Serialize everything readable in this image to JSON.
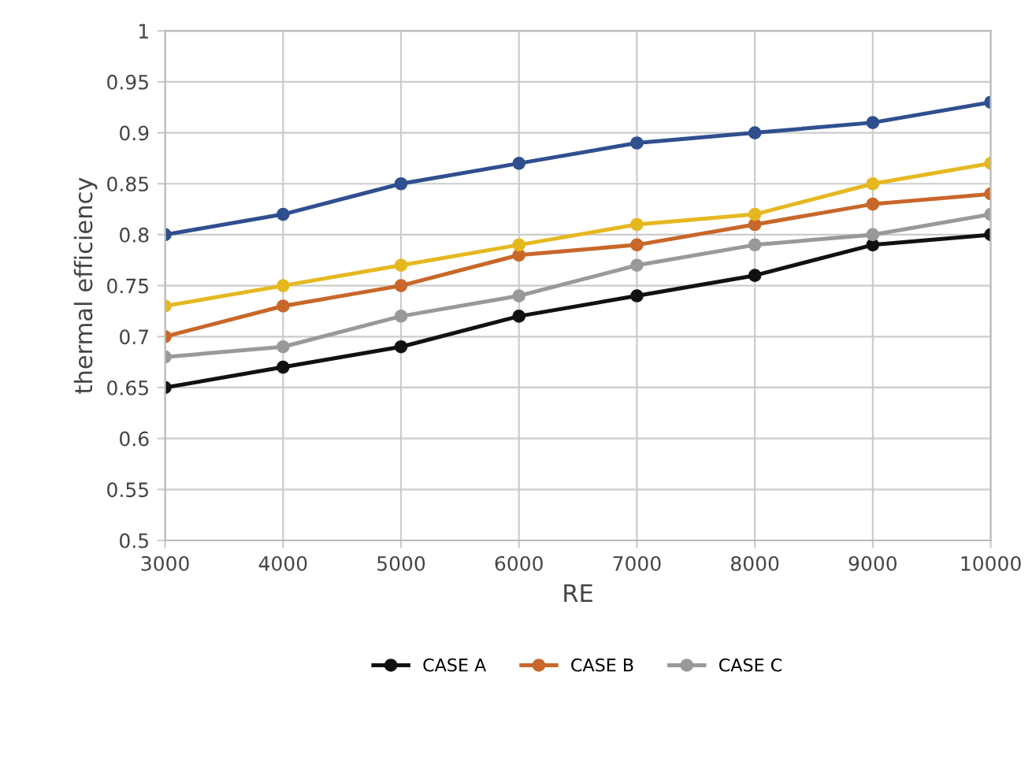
{
  "chart_data": {
    "type": "line",
    "xlabel": "RE",
    "ylabel": "thermal efficiency",
    "x": [
      3000,
      4000,
      5000,
      6000,
      7000,
      8000,
      9000,
      10000
    ],
    "series": [
      {
        "name": "CASE A",
        "color": "#111111",
        "values": [
          0.65,
          0.67,
          0.69,
          0.72,
          0.74,
          0.76,
          0.79,
          0.8
        ]
      },
      {
        "name": "CASE B",
        "color": "#c8672a",
        "values": [
          0.7,
          0.73,
          0.75,
          0.78,
          0.79,
          0.81,
          0.83,
          0.84
        ]
      },
      {
        "name": "CASE C",
        "color": "#999999",
        "values": [
          0.68,
          0.69,
          0.72,
          0.74,
          0.77,
          0.79,
          0.8,
          0.82
        ]
      },
      {
        "color": "#e6b820",
        "values": [
          0.73,
          0.75,
          0.77,
          0.79,
          0.81,
          0.82,
          0.85,
          0.87
        ]
      },
      {
        "color": "#2f4f8f",
        "values": [
          0.8,
          0.82,
          0.85,
          0.87,
          0.89,
          0.9,
          0.91,
          0.93
        ]
      }
    ],
    "xlim": [
      3000,
      10000
    ],
    "xticks": [
      3000,
      4000,
      5000,
      6000,
      7000,
      8000,
      9000,
      10000
    ],
    "ylim": [
      0.5,
      1
    ],
    "yticks": [
      0.5,
      0.55,
      0.6,
      0.65,
      0.7,
      0.75,
      0.8,
      0.85,
      0.9,
      0.95,
      1
    ],
    "grid": true,
    "legend": "bottom",
    "marker": "circle",
    "line_style": "solid"
  }
}
